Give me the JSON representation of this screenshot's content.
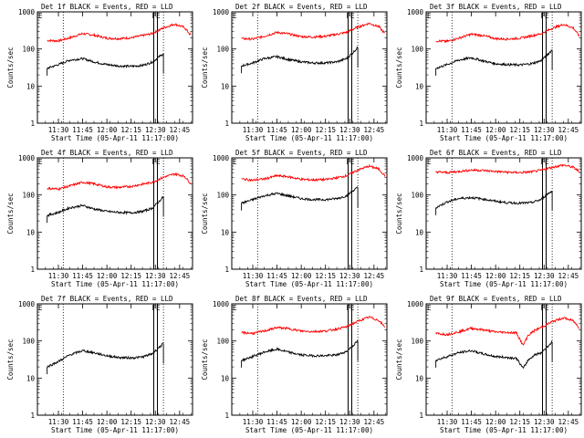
{
  "common": {
    "xlabel": "Start Time (05-Apr-11 11:17:00)",
    "ylabel": "Counts/sec",
    "x_ticks": [
      "11:30",
      "11:45",
      "12:00",
      "12:15",
      "12:30",
      "12:45"
    ],
    "y_ticks": [
      "1",
      "10",
      "100",
      "1000"
    ],
    "marker_E": "E",
    "marker_FE": "FE",
    "colors": {
      "events": "#000000",
      "lld": "#ff0000"
    }
  },
  "chart_data": [
    {
      "type": "line",
      "title": "Det 1f BLACK = Events, RED = LLD",
      "xlabel": "Start Time (05-Apr-11 11:17:00)",
      "ylabel": "Counts/sec",
      "y_scale": "log",
      "ylim": [
        1,
        1000
      ],
      "x_range": [
        "11:17",
        "12:53"
      ],
      "series": [
        {
          "name": "Events",
          "color": "#000000",
          "x": [
            "11:23",
            "11:30",
            "11:37",
            "11:45",
            "11:52",
            "12:00",
            "12:07",
            "12:15",
            "12:22",
            "12:28",
            "12:32",
            "12:35"
          ],
          "y": [
            30,
            38,
            50,
            55,
            45,
            38,
            35,
            34,
            36,
            44,
            60,
            75
          ]
        },
        {
          "name": "LLD",
          "color": "#ff0000",
          "x": [
            "11:23",
            "11:30",
            "11:37",
            "11:45",
            "11:52",
            "12:00",
            "12:07",
            "12:15",
            "12:22",
            "12:28",
            "12:35",
            "12:42",
            "12:48",
            "12:52"
          ],
          "y": [
            170,
            165,
            200,
            260,
            235,
            195,
            190,
            200,
            230,
            260,
            370,
            470,
            380,
            230
          ]
        }
      ]
    },
    {
      "type": "line",
      "title": "Det 2f BLACK = Events, RED = LLD",
      "xlabel": "Start Time (05-Apr-11 11:17:00)",
      "ylabel": "Counts/sec",
      "y_scale": "log",
      "ylim": [
        1,
        1000
      ],
      "x_range": [
        "11:17",
        "12:53"
      ],
      "series": [
        {
          "name": "Events",
          "color": "#000000",
          "x": [
            "11:23",
            "11:30",
            "11:37",
            "11:45",
            "11:52",
            "12:00",
            "12:07",
            "12:15",
            "12:22",
            "12:28",
            "12:32",
            "12:35"
          ],
          "y": [
            35,
            42,
            55,
            62,
            52,
            45,
            42,
            42,
            45,
            55,
            80,
            110
          ]
        },
        {
          "name": "LLD",
          "color": "#ff0000",
          "x": [
            "11:23",
            "11:30",
            "11:37",
            "11:45",
            "11:52",
            "12:00",
            "12:07",
            "12:15",
            "12:22",
            "12:28",
            "12:35",
            "12:42",
            "12:48",
            "12:52"
          ],
          "y": [
            190,
            185,
            220,
            280,
            255,
            215,
            210,
            220,
            250,
            280,
            390,
            490,
            400,
            250
          ]
        }
      ]
    },
    {
      "type": "line",
      "title": "Det 3f BLACK = Events, RED = LLD",
      "xlabel": "Start Time (05-Apr-11 11:17:00)",
      "ylabel": "Counts/sec",
      "y_scale": "log",
      "ylim": [
        1,
        1000
      ],
      "x_range": [
        "11:17",
        "12:53"
      ],
      "series": [
        {
          "name": "Events",
          "color": "#000000",
          "x": [
            "11:23",
            "11:30",
            "11:37",
            "11:45",
            "11:52",
            "12:00",
            "12:07",
            "12:15",
            "12:22",
            "12:28",
            "12:32",
            "12:35"
          ],
          "y": [
            30,
            38,
            50,
            58,
            48,
            40,
            38,
            37,
            40,
            48,
            70,
            95
          ]
        },
        {
          "name": "LLD",
          "color": "#ff0000",
          "x": [
            "11:23",
            "11:30",
            "11:37",
            "11:45",
            "11:52",
            "12:00",
            "12:07",
            "12:15",
            "12:22",
            "12:28",
            "12:35",
            "12:42",
            "12:48",
            "12:52"
          ],
          "y": [
            165,
            160,
            195,
            250,
            230,
            190,
            185,
            195,
            225,
            255,
            360,
            460,
            370,
            220
          ]
        }
      ]
    },
    {
      "type": "line",
      "title": "Det 4f BLACK = Events, RED = LLD",
      "xlabel": "Start Time (05-Apr-11 11:17:00)",
      "ylabel": "Counts/sec",
      "y_scale": "log",
      "ylim": [
        1,
        1000
      ],
      "x_range": [
        "11:17",
        "12:53"
      ],
      "series": [
        {
          "name": "Events",
          "color": "#000000",
          "x": [
            "11:23",
            "11:30",
            "11:37",
            "11:45",
            "11:52",
            "12:00",
            "12:07",
            "12:15",
            "12:22",
            "12:28",
            "12:32",
            "12:35"
          ],
          "y": [
            28,
            34,
            45,
            52,
            42,
            36,
            34,
            33,
            36,
            44,
            65,
            90
          ]
        },
        {
          "name": "LLD",
          "color": "#ff0000",
          "x": [
            "11:23",
            "11:30",
            "11:37",
            "11:45",
            "11:52",
            "12:00",
            "12:07",
            "12:15",
            "12:22",
            "12:28",
            "12:35",
            "12:42",
            "12:48",
            "12:52"
          ],
          "y": [
            150,
            145,
            175,
            220,
            200,
            165,
            160,
            170,
            195,
            220,
            300,
            370,
            320,
            200
          ]
        }
      ]
    },
    {
      "type": "line",
      "title": "Det 5f BLACK = Events, RED = LLD",
      "xlabel": "Start Time (05-Apr-11 11:17:00)",
      "ylabel": "Counts/sec",
      "y_scale": "log",
      "ylim": [
        1,
        1000
      ],
      "x_range": [
        "11:17",
        "12:53"
      ],
      "series": [
        {
          "name": "Events",
          "color": "#000000",
          "x": [
            "11:23",
            "11:30",
            "11:37",
            "11:45",
            "11:52",
            "12:00",
            "12:07",
            "12:15",
            "12:22",
            "12:28",
            "12:32",
            "12:35"
          ],
          "y": [
            60,
            75,
            95,
            110,
            95,
            80,
            75,
            75,
            80,
            95,
            130,
            160
          ]
        },
        {
          "name": "LLD",
          "color": "#ff0000",
          "x": [
            "11:23",
            "11:30",
            "11:37",
            "11:45",
            "11:52",
            "12:00",
            "12:07",
            "12:15",
            "12:22",
            "12:28",
            "12:35",
            "12:42",
            "12:48",
            "12:52"
          ],
          "y": [
            270,
            250,
            270,
            330,
            310,
            265,
            255,
            260,
            290,
            330,
            470,
            600,
            500,
            320
          ]
        }
      ]
    },
    {
      "type": "line",
      "title": "Det 6f BLACK = Events, RED = LLD",
      "xlabel": "Start Time (05-Apr-11 11:17:00)",
      "ylabel": "Counts/sec",
      "y_scale": "log",
      "ylim": [
        1,
        1000
      ],
      "x_range": [
        "11:17",
        "12:53"
      ],
      "series": [
        {
          "name": "Events",
          "color": "#000000",
          "x": [
            "11:23",
            "11:30",
            "11:37",
            "11:45",
            "11:52",
            "12:00",
            "12:07",
            "12:15",
            "12:22",
            "12:28",
            "12:32",
            "12:35"
          ],
          "y": [
            45,
            65,
            80,
            85,
            78,
            68,
            62,
            60,
            62,
            75,
            105,
            130
          ]
        },
        {
          "name": "LLD",
          "color": "#ff0000",
          "x": [
            "11:23",
            "11:30",
            "11:37",
            "11:45",
            "11:52",
            "12:00",
            "12:07",
            "12:15",
            "12:22",
            "12:28",
            "12:35",
            "12:42",
            "12:48",
            "12:52"
          ],
          "y": [
            420,
            400,
            430,
            470,
            460,
            430,
            410,
            400,
            420,
            460,
            560,
            640,
            560,
            420
          ]
        }
      ]
    },
    {
      "type": "line",
      "title": "Det 7f BLACK = Events, RED = LLD",
      "xlabel": "Start Time (05-Apr-11 11:17:00)",
      "ylabel": "Counts/sec",
      "y_scale": "log",
      "ylim": [
        1,
        1000
      ],
      "x_range": [
        "11:17",
        "12:53"
      ],
      "series": [
        {
          "name": "Events",
          "color": "#000000",
          "x": [
            "11:23",
            "11:30",
            "11:37",
            "11:45",
            "11:52",
            "12:00",
            "12:07",
            "12:15",
            "12:22",
            "12:28",
            "12:32",
            "12:35"
          ],
          "y": [
            20,
            28,
            42,
            55,
            48,
            40,
            36,
            35,
            37,
            45,
            65,
            85
          ]
        }
      ]
    },
    {
      "type": "line",
      "title": "Det 8f BLACK = Events, RED = LLD",
      "xlabel": "Start Time (05-Apr-11 11:17:00)",
      "ylabel": "Counts/sec",
      "y_scale": "log",
      "ylim": [
        1,
        1000
      ],
      "x_range": [
        "11:17",
        "12:53"
      ],
      "series": [
        {
          "name": "Events",
          "color": "#000000",
          "x": [
            "11:23",
            "11:30",
            "11:37",
            "11:45",
            "11:52",
            "12:00",
            "12:07",
            "12:15",
            "12:22",
            "12:28",
            "12:32",
            "12:35"
          ],
          "y": [
            30,
            38,
            50,
            60,
            50,
            42,
            40,
            40,
            42,
            52,
            75,
            100
          ]
        },
        {
          "name": "LLD",
          "color": "#ff0000",
          "x": [
            "11:23",
            "11:30",
            "11:37",
            "11:45",
            "11:52",
            "12:00",
            "12:07",
            "12:15",
            "12:22",
            "12:28",
            "12:35",
            "12:42",
            "12:48",
            "12:52"
          ],
          "y": [
            170,
            160,
            185,
            230,
            215,
            185,
            180,
            185,
            210,
            240,
            340,
            440,
            360,
            230
          ]
        }
      ]
    },
    {
      "type": "line",
      "title": "Det 9f BLACK = Events, RED = LLD",
      "xlabel": "Start Time (05-Apr-11 11:17:00)",
      "ylabel": "Counts/sec",
      "y_scale": "log",
      "ylim": [
        1,
        1000
      ],
      "x_range": [
        "11:17",
        "12:53"
      ],
      "series": [
        {
          "name": "Events",
          "color": "#000000",
          "x": [
            "11:23",
            "11:30",
            "11:37",
            "11:45",
            "11:52",
            "12:00",
            "12:07",
            "12:13",
            "12:17",
            "12:20",
            "12:24",
            "12:28",
            "12:32",
            "12:35"
          ],
          "y": [
            30,
            38,
            48,
            55,
            45,
            38,
            36,
            34,
            18,
            30,
            42,
            48,
            70,
            95
          ]
        },
        {
          "name": "LLD",
          "color": "#ff0000",
          "x": [
            "11:23",
            "11:30",
            "11:37",
            "11:45",
            "11:52",
            "12:00",
            "12:07",
            "12:13",
            "12:17",
            "12:20",
            "12:24",
            "12:28",
            "12:35",
            "12:42",
            "12:48",
            "12:52"
          ],
          "y": [
            160,
            150,
            175,
            220,
            200,
            175,
            170,
            165,
            75,
            140,
            190,
            230,
            330,
            420,
            350,
            220
          ]
        }
      ]
    }
  ]
}
